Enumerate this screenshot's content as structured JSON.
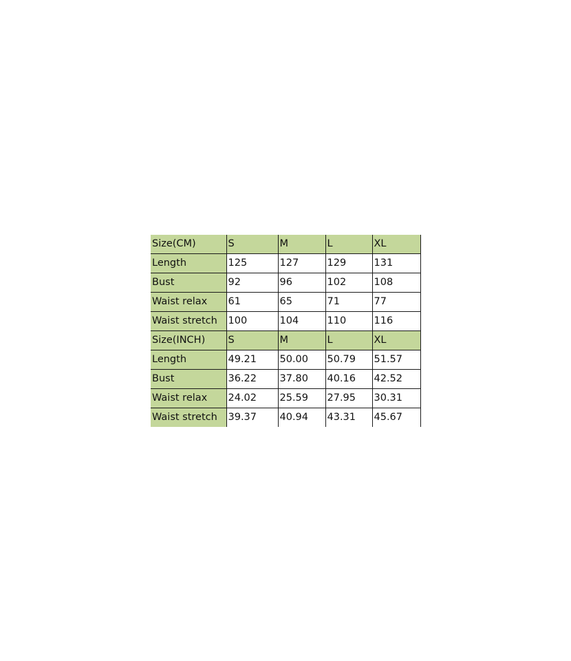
{
  "colors": {
    "header_fill": "#c4d79b",
    "grid": "#1a1a1a"
  },
  "tables": [
    {
      "header": [
        "Size(CM)",
        "S",
        "M",
        "L",
        "XL"
      ],
      "rows": [
        [
          "Length",
          "125",
          "127",
          "129",
          "131"
        ],
        [
          "Bust",
          "92",
          "96",
          "102",
          "108"
        ],
        [
          "Waist relax",
          "61",
          "65",
          "71",
          "77"
        ],
        [
          "Waist stretch",
          "100",
          "104",
          "110",
          "116"
        ]
      ]
    },
    {
      "header": [
        "Size(INCH)",
        "S",
        "M",
        "L",
        "XL"
      ],
      "rows": [
        [
          "Length",
          "49.21",
          "50.00",
          "50.79",
          "51.57"
        ],
        [
          "Bust",
          "36.22",
          "37.80",
          "40.16",
          "42.52"
        ],
        [
          "Waist relax",
          "24.02",
          "25.59",
          "27.95",
          "30.31"
        ],
        [
          "Waist stretch",
          "39.37",
          "40.94",
          "43.31",
          "45.67"
        ]
      ]
    }
  ]
}
